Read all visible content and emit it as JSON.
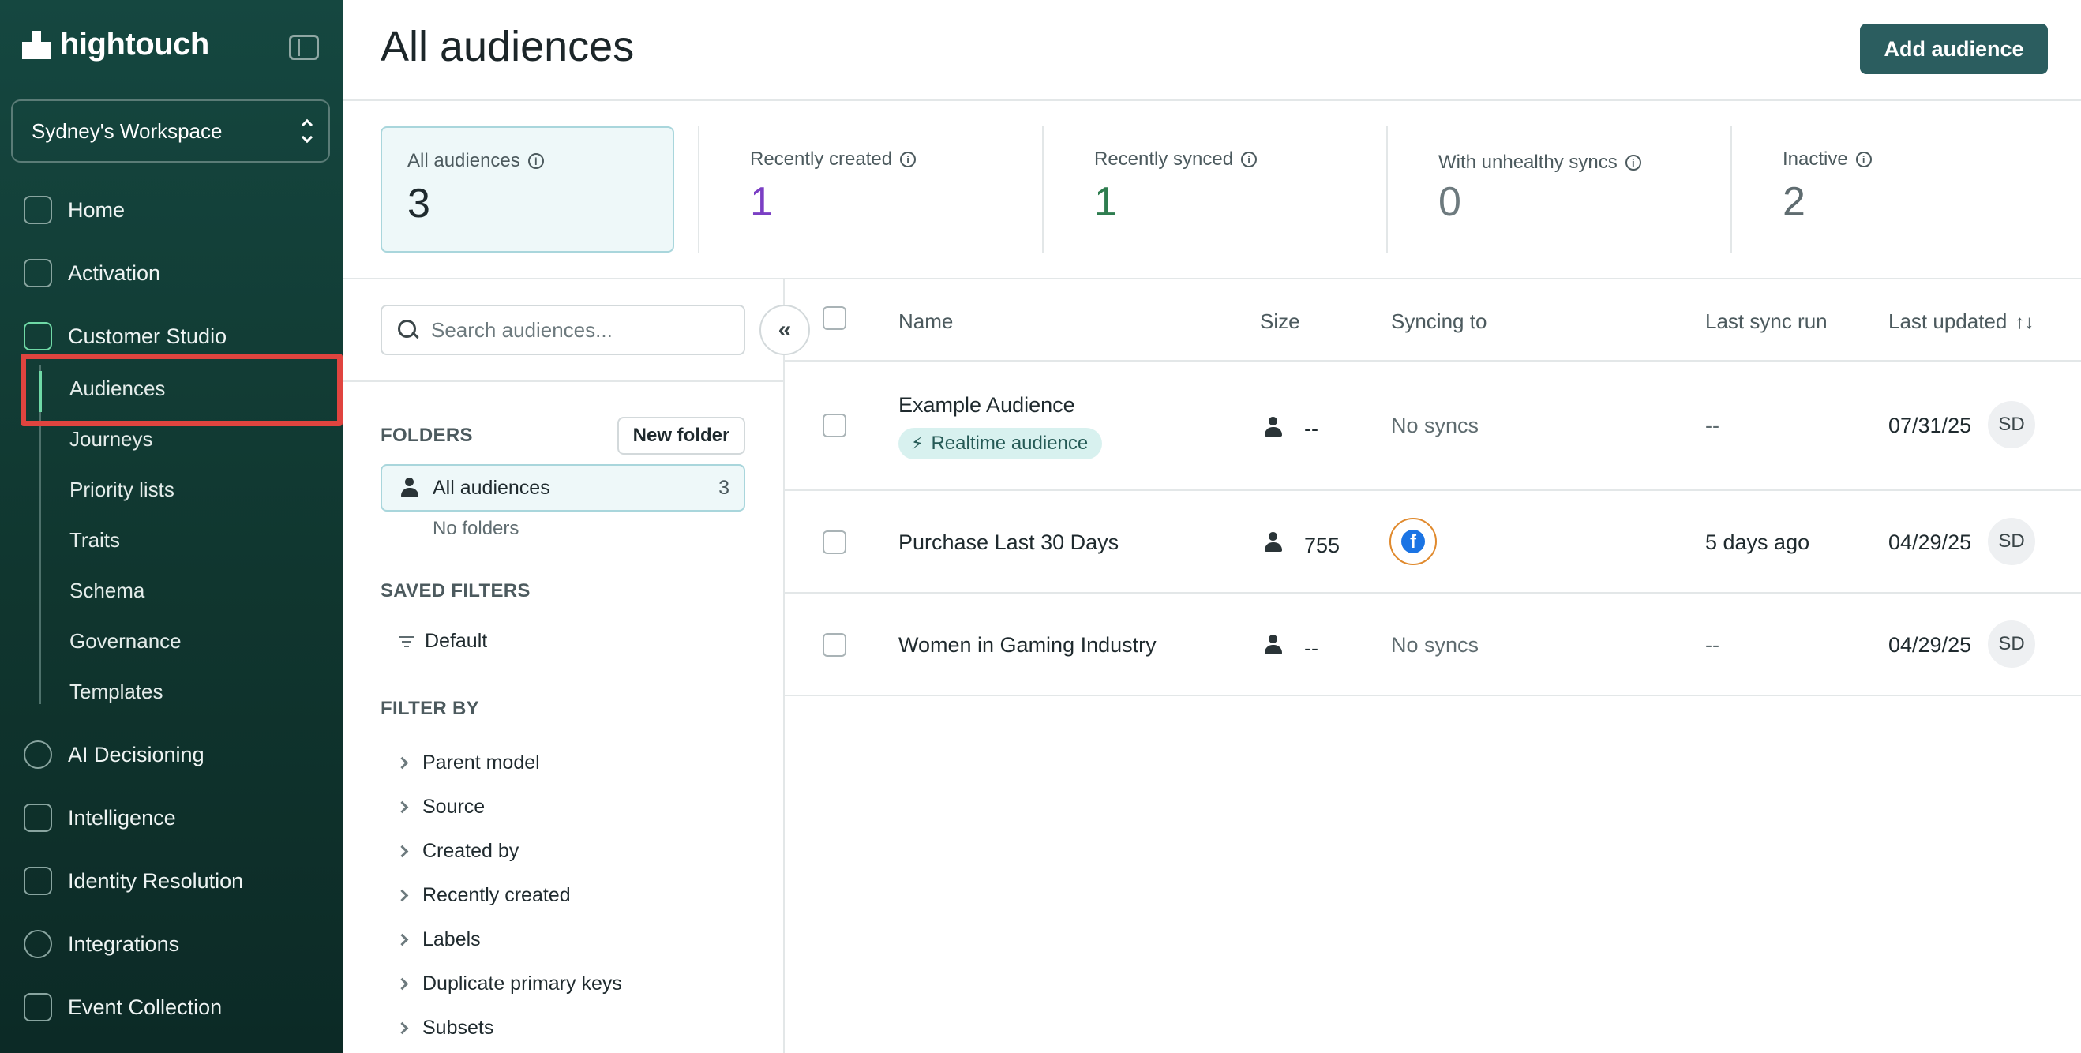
{
  "brand": {
    "name": "hightouch"
  },
  "workspace": {
    "name": "Sydney's Workspace"
  },
  "nav": {
    "home": "Home",
    "activation": "Activation",
    "customer_studio": "Customer Studio",
    "sub": [
      "Audiences",
      "Journeys",
      "Priority lists",
      "Traits",
      "Schema",
      "Governance",
      "Templates"
    ],
    "ai_decisioning": "AI Decisioning",
    "intelligence": "Intelligence",
    "identity_resolution": "Identity Resolution",
    "integrations": "Integrations",
    "event_collection": "Event Collection"
  },
  "header": {
    "title": "All audiences",
    "add_button": "Add audience"
  },
  "stats": [
    {
      "label": "All audiences",
      "value": "3",
      "color": "#1f2a2e"
    },
    {
      "label": "Recently created",
      "value": "1",
      "color": "#7b3fc4"
    },
    {
      "label": "Recently synced",
      "value": "1",
      "color": "#2e7d4f"
    },
    {
      "label": "With unhealthy syncs",
      "value": "0",
      "color": "#6d7a7e"
    },
    {
      "label": "Inactive",
      "value": "2",
      "color": "#5f6c70"
    }
  ],
  "sidebar_panel": {
    "search_placeholder": "Search audiences...",
    "collapse_glyph": "«",
    "folders_label": "FOLDERS",
    "new_folder": "New folder",
    "all_audiences": "All audiences",
    "all_count": "3",
    "no_folders": "No folders",
    "saved_filters_label": "SAVED FILTERS",
    "default_filter": "Default",
    "filter_by_label": "FILTER BY",
    "filters": [
      "Parent model",
      "Source",
      "Created by",
      "Recently created",
      "Labels",
      "Duplicate primary keys",
      "Subsets"
    ]
  },
  "table": {
    "columns": {
      "name": "Name",
      "size": "Size",
      "syncing_to": "Syncing to",
      "last_sync_run": "Last sync run",
      "last_updated": "Last updated"
    },
    "sort_glyph": "↑↓",
    "rows": [
      {
        "name": "Example Audience",
        "badge": "Realtime audience",
        "size": "--",
        "syncing_to": "No syncs",
        "last_sync": "--",
        "updated": "07/31/25",
        "owner": "SD"
      },
      {
        "name": "Purchase Last 30 Days",
        "size": "755",
        "syncing_to_icon": "facebook-icon",
        "last_sync": "5 days ago",
        "updated": "04/29/25",
        "owner": "SD"
      },
      {
        "name": "Women in Gaming Industry",
        "size": "--",
        "syncing_to": "No syncs",
        "last_sync": "--",
        "updated": "04/29/25",
        "owner": "SD"
      }
    ]
  }
}
